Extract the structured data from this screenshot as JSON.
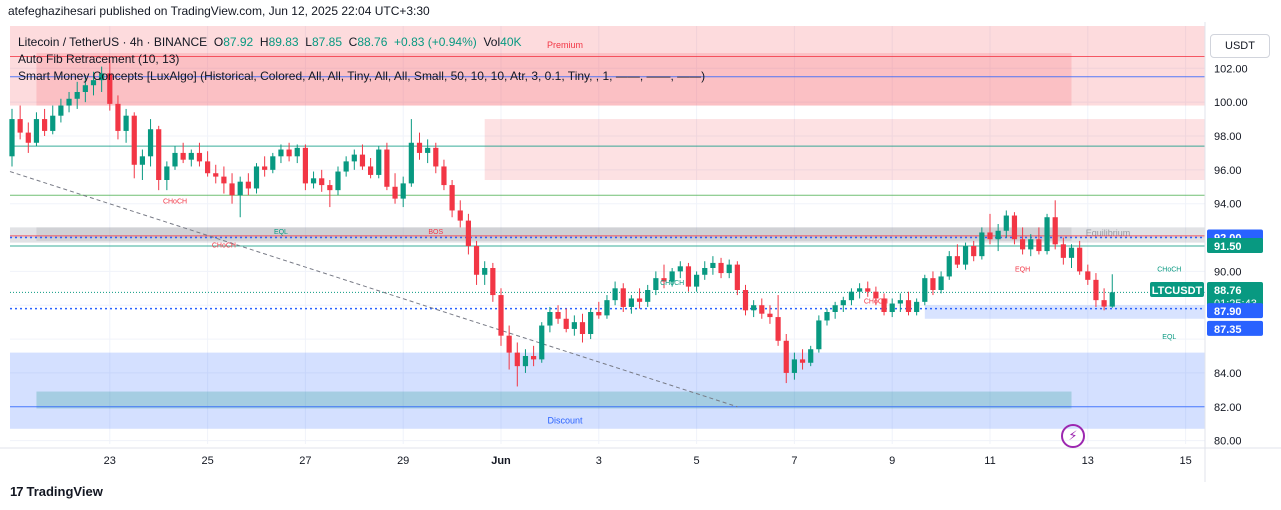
{
  "header": {
    "publisher": "atefeghazihesari published on TradingView.com, Jun 12, 2025 22:04 UTC+3:30"
  },
  "legend": {
    "symbol": "Litecoin / TetherUS · 4h · BINANCE",
    "open_label": "O",
    "open": "87.92",
    "high_label": "H",
    "high": "89.83",
    "low_label": "L",
    "low": "87.85",
    "close_label": "C",
    "close": "88.76",
    "change": "+0.83 (+0.94%)",
    "vol_label": "Vol",
    "vol": "40K",
    "indicator1": "Auto Fib Retracement (10, 13)",
    "indicator2": "Smart Money Concepts [LuxAlgo] (Historical, Colored, All, All, Tiny, All, All, Small, 50, 10, 10, Atr, 3, 0.1, Tiny, , 1, ——, ——, ——)"
  },
  "unit": "USDT",
  "footer": {
    "brand": "TradingView"
  },
  "colors": {
    "up": "#089981",
    "down": "#f23645",
    "premium": "#f23645",
    "discount": "#2962ff",
    "equilibrium": "#9598a1"
  },
  "chart_data": {
    "type": "candlestick",
    "y_ticks": [
      80,
      82,
      84,
      86,
      88,
      90,
      92,
      94,
      96,
      98,
      100,
      102
    ],
    "y_tick_labels": [
      "80.00",
      "82.00",
      "84.00",
      "",
      "",
      "90.00",
      "",
      "94.00",
      "96.00",
      "98.00",
      "100.00",
      "102.00"
    ],
    "ylim": [
      79.8,
      104.5
    ],
    "x_ticks": [
      {
        "label": "23",
        "i": 12
      },
      {
        "label": "25",
        "i": 24
      },
      {
        "label": "27",
        "i": 36
      },
      {
        "label": "29",
        "i": 48
      },
      {
        "label": "Jun",
        "i": 60
      },
      {
        "label": "3",
        "i": 72
      },
      {
        "label": "5",
        "i": 84
      },
      {
        "label": "7",
        "i": 96
      },
      {
        "label": "9",
        "i": 108
      },
      {
        "label": "11",
        "i": 120
      },
      {
        "label": "13",
        "i": 132
      },
      {
        "label": "15",
        "i": 144
      }
    ],
    "candles": [
      [
        96.8,
        99.6,
        96.2,
        99.0
      ],
      [
        99.0,
        99.8,
        97.8,
        98.2
      ],
      [
        98.2,
        98.8,
        97.0,
        97.6
      ],
      [
        97.6,
        99.4,
        97.4,
        99.0
      ],
      [
        99.0,
        99.6,
        98.0,
        98.3
      ],
      [
        98.3,
        99.8,
        98.1,
        99.2
      ],
      [
        99.2,
        100.2,
        98.8,
        99.8
      ],
      [
        99.8,
        100.6,
        99.4,
        100.2
      ],
      [
        100.2,
        101.2,
        99.6,
        100.6
      ],
      [
        100.6,
        101.6,
        100.0,
        101.0
      ],
      [
        101.0,
        101.8,
        100.4,
        101.3
      ],
      [
        101.3,
        102.1,
        100.6,
        101.7
      ],
      [
        101.7,
        102.5,
        99.5,
        99.9
      ],
      [
        99.9,
        100.4,
        97.8,
        98.3
      ],
      [
        98.3,
        99.6,
        97.6,
        99.2
      ],
      [
        99.2,
        99.4,
        95.5,
        96.3
      ],
      [
        96.3,
        97.2,
        95.4,
        96.8
      ],
      [
        96.8,
        99.0,
        96.2,
        98.4
      ],
      [
        98.4,
        98.6,
        94.8,
        95.4
      ],
      [
        95.4,
        96.5,
        94.8,
        96.2
      ],
      [
        96.2,
        97.4,
        96.0,
        97.0
      ],
      [
        97.0,
        97.6,
        96.4,
        96.6
      ],
      [
        96.6,
        97.2,
        96.2,
        97.0
      ],
      [
        97.0,
        97.6,
        96.2,
        96.5
      ],
      [
        96.5,
        97.1,
        95.6,
        95.8
      ],
      [
        95.8,
        96.3,
        95.2,
        95.6
      ],
      [
        95.6,
        96.2,
        94.6,
        95.2
      ],
      [
        95.2,
        95.8,
        94.0,
        94.5
      ],
      [
        94.5,
        95.6,
        93.2,
        95.3
      ],
      [
        95.3,
        95.8,
        94.5,
        94.9
      ],
      [
        94.9,
        96.4,
        94.6,
        96.2
      ],
      [
        96.2,
        96.8,
        95.6,
        96.0
      ],
      [
        96.0,
        97.0,
        95.8,
        96.8
      ],
      [
        96.8,
        97.5,
        96.4,
        97.2
      ],
      [
        97.2,
        97.6,
        96.5,
        96.8
      ],
      [
        96.8,
        97.5,
        96.4,
        97.3
      ],
      [
        97.3,
        97.5,
        94.8,
        95.2
      ],
      [
        95.2,
        95.9,
        94.9,
        95.5
      ],
      [
        95.5,
        96.0,
        94.7,
        95.1
      ],
      [
        95.1,
        95.4,
        93.8,
        94.8
      ],
      [
        94.8,
        96.2,
        94.5,
        95.9
      ],
      [
        95.9,
        96.8,
        95.6,
        96.5
      ],
      [
        96.5,
        97.2,
        96.0,
        96.9
      ],
      [
        96.9,
        97.5,
        96.0,
        96.2
      ],
      [
        96.2,
        96.7,
        95.5,
        95.7
      ],
      [
        95.7,
        97.4,
        95.5,
        97.2
      ],
      [
        97.2,
        97.6,
        94.8,
        95.0
      ],
      [
        95.0,
        95.8,
        94.0,
        94.3
      ],
      [
        94.3,
        95.6,
        93.8,
        95.2
      ],
      [
        95.2,
        99.0,
        95.0,
        97.6
      ],
      [
        97.6,
        98.2,
        96.6,
        97.0
      ],
      [
        97.0,
        97.8,
        96.4,
        97.3
      ],
      [
        97.3,
        97.6,
        95.8,
        96.2
      ],
      [
        96.2,
        96.6,
        94.8,
        95.1
      ],
      [
        95.1,
        95.4,
        93.2,
        93.6
      ],
      [
        93.6,
        94.2,
        92.6,
        93.0
      ],
      [
        93.0,
        93.4,
        91.0,
        91.5
      ],
      [
        91.5,
        91.8,
        89.2,
        89.8
      ],
      [
        89.8,
        90.6,
        89.2,
        90.2
      ],
      [
        90.2,
        90.5,
        88.2,
        88.6
      ],
      [
        88.6,
        89.0,
        85.6,
        86.2
      ],
      [
        86.2,
        86.8,
        84.2,
        85.2
      ],
      [
        85.2,
        85.8,
        83.2,
        84.4
      ],
      [
        84.4,
        85.4,
        84.0,
        85.0
      ],
      [
        85.0,
        85.6,
        84.4,
        84.8
      ],
      [
        84.8,
        87.0,
        84.6,
        86.8
      ],
      [
        86.8,
        87.9,
        86.4,
        87.6
      ],
      [
        87.6,
        88.0,
        86.9,
        87.2
      ],
      [
        87.2,
        87.8,
        86.4,
        86.6
      ],
      [
        86.6,
        87.4,
        86.2,
        87.0
      ],
      [
        87.0,
        87.5,
        85.8,
        86.3
      ],
      [
        86.3,
        87.8,
        86.0,
        87.6
      ],
      [
        87.6,
        88.2,
        87.2,
        87.4
      ],
      [
        87.4,
        88.6,
        87.2,
        88.3
      ],
      [
        88.3,
        89.4,
        88.0,
        89.0
      ],
      [
        89.0,
        89.3,
        87.6,
        87.9
      ],
      [
        87.9,
        88.6,
        87.5,
        88.4
      ],
      [
        88.4,
        89.0,
        87.8,
        88.2
      ],
      [
        88.2,
        89.2,
        87.9,
        88.9
      ],
      [
        88.9,
        90.0,
        88.6,
        89.6
      ],
      [
        89.6,
        90.4,
        89.0,
        89.4
      ],
      [
        89.4,
        90.2,
        89.1,
        90.0
      ],
      [
        90.0,
        90.6,
        89.6,
        90.3
      ],
      [
        90.3,
        90.5,
        88.8,
        89.1
      ],
      [
        89.1,
        90.0,
        88.8,
        89.8
      ],
      [
        89.8,
        90.6,
        89.5,
        90.2
      ],
      [
        90.2,
        90.9,
        89.8,
        90.5
      ],
      [
        90.5,
        90.8,
        89.6,
        89.9
      ],
      [
        89.9,
        90.7,
        89.6,
        90.4
      ],
      [
        90.4,
        90.6,
        88.6,
        88.9
      ],
      [
        88.9,
        89.2,
        87.4,
        87.7
      ],
      [
        87.7,
        88.3,
        87.3,
        88.0
      ],
      [
        88.0,
        88.4,
        87.2,
        87.5
      ],
      [
        87.5,
        88.0,
        86.9,
        87.3
      ],
      [
        87.3,
        88.6,
        85.6,
        85.9
      ],
      [
        85.9,
        86.3,
        83.4,
        84.0
      ],
      [
        84.0,
        85.2,
        83.6,
        84.8
      ],
      [
        84.8,
        85.4,
        84.2,
        84.6
      ],
      [
        84.6,
        85.6,
        84.4,
        85.4
      ],
      [
        85.4,
        87.4,
        85.2,
        87.1
      ],
      [
        87.1,
        87.8,
        86.8,
        87.6
      ],
      [
        87.6,
        88.2,
        87.2,
        88.0
      ],
      [
        88.0,
        88.5,
        87.6,
        88.3
      ],
      [
        88.3,
        89.0,
        88.0,
        88.8
      ],
      [
        88.8,
        89.3,
        88.4,
        89.0
      ],
      [
        89.0,
        89.4,
        88.5,
        88.8
      ],
      [
        88.8,
        89.1,
        88.0,
        88.4
      ],
      [
        88.4,
        88.7,
        87.4,
        87.6
      ],
      [
        87.6,
        88.4,
        87.3,
        88.1
      ],
      [
        88.1,
        88.7,
        87.6,
        88.3
      ],
      [
        88.3,
        88.8,
        87.4,
        87.6
      ],
      [
        87.6,
        88.4,
        87.4,
        88.2
      ],
      [
        88.2,
        89.8,
        88.0,
        89.6
      ],
      [
        89.6,
        90.0,
        88.6,
        88.9
      ],
      [
        88.9,
        90.0,
        88.7,
        89.7
      ],
      [
        89.7,
        91.2,
        89.5,
        90.9
      ],
      [
        90.9,
        91.6,
        90.2,
        90.4
      ],
      [
        90.4,
        91.7,
        90.1,
        91.5
      ],
      [
        91.5,
        91.8,
        90.6,
        90.9
      ],
      [
        90.9,
        92.6,
        90.7,
        92.3
      ],
      [
        92.3,
        93.4,
        91.6,
        91.9
      ],
      [
        91.9,
        92.8,
        91.2,
        92.4
      ],
      [
        92.4,
        93.6,
        92.0,
        93.3
      ],
      [
        93.3,
        93.5,
        91.6,
        91.9
      ],
      [
        91.9,
        92.6,
        91.0,
        91.3
      ],
      [
        91.3,
        92.2,
        90.9,
        91.9
      ],
      [
        91.9,
        92.6,
        91.0,
        91.2
      ],
      [
        91.2,
        93.4,
        91.0,
        93.2
      ],
      [
        93.2,
        94.2,
        91.3,
        91.6
      ],
      [
        91.6,
        92.0,
        90.4,
        90.8
      ],
      [
        90.8,
        91.6,
        90.2,
        91.4
      ],
      [
        91.4,
        91.8,
        89.8,
        90.0
      ],
      [
        90.0,
        90.4,
        89.2,
        89.5
      ],
      [
        89.5,
        89.9,
        87.9,
        88.3
      ],
      [
        88.3,
        89.0,
        87.7,
        87.92
      ],
      [
        87.92,
        89.83,
        87.85,
        88.76
      ]
    ],
    "zones": [
      {
        "name": "premium",
        "label": "Premium",
        "top": 104.5,
        "bottom": 99.8
      },
      {
        "name": "equilibrium",
        "label": "Equilibrium",
        "top": 92.6,
        "bottom": 91.7
      },
      {
        "name": "discount",
        "label": "Discount",
        "top": 85.2,
        "bottom": 80.7
      }
    ],
    "resistance_band": {
      "top": 99.0,
      "bottom": 95.4
    },
    "support_band": {
      "top": 88.0,
      "bottom": 87.2
    },
    "fib_lines": [
      102.7,
      101.5,
      97.4,
      94.5,
      92.1,
      91.5,
      82.0
    ],
    "dotted_levels": [
      92.0,
      87.8
    ],
    "smc_labels": [
      {
        "text": "CHoCH",
        "i": 20,
        "y": 94.0,
        "color": "#f23645"
      },
      {
        "text": "EQL",
        "i": 33,
        "y": 92.2,
        "color": "#089981"
      },
      {
        "text": "BOS",
        "i": 52,
        "y": 92.2,
        "color": "#f23645"
      },
      {
        "text": "CHoCH",
        "i": 26,
        "y": 91.4,
        "color": "#f23645"
      },
      {
        "text": "CHoCH",
        "i": 81,
        "y": 89.2,
        "color": "#089981"
      },
      {
        "text": "CHoCH",
        "i": 106,
        "y": 88.1,
        "color": "#f23645"
      },
      {
        "text": "EQH",
        "i": 124,
        "y": 90.0,
        "color": "#f23645"
      },
      {
        "text": "CHoCH",
        "i": 142,
        "y": 90.0,
        "color": "#089981"
      },
      {
        "text": "EQL",
        "i": 142,
        "y": 86.0,
        "color": "#089981"
      }
    ],
    "price_tags": [
      {
        "value": "92.00",
        "price": 92.0,
        "color": "#2962ff"
      },
      {
        "value": "91.50",
        "price": 91.5,
        "color": "#089981"
      },
      {
        "value": "88.76",
        "price": 88.9,
        "color": "#089981",
        "symbol": "LTCUSDT",
        "timer": "01:25:43"
      },
      {
        "value": "87.90",
        "price": 87.65,
        "color": "#2962ff"
      },
      {
        "value": "87.35",
        "price": 86.6,
        "color": "#2962ff"
      }
    ]
  }
}
